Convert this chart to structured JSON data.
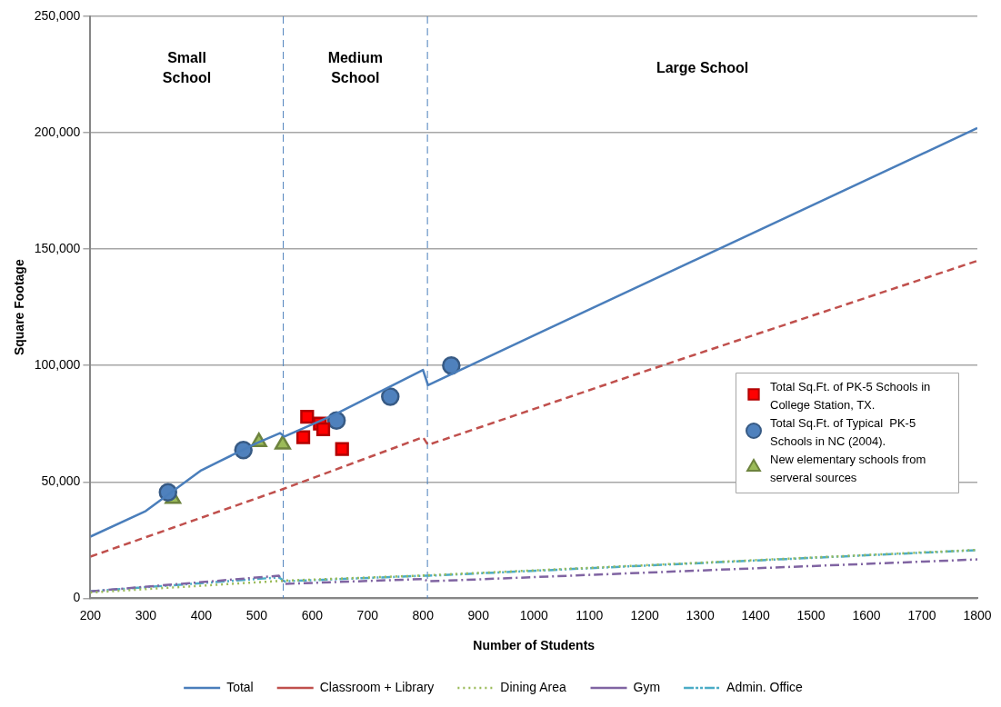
{
  "chart_data": {
    "type": "line",
    "xlabel": "Number of Students",
    "ylabel": "Square Footage",
    "xlim": [
      200,
      1800
    ],
    "xticks": [
      200,
      300,
      400,
      500,
      600,
      700,
      800,
      900,
      1000,
      1100,
      1200,
      1300,
      1400,
      1500,
      1600,
      1700,
      1800
    ],
    "ylim": [
      0,
      250000
    ],
    "yticks": [
      {
        "value": 0,
        "label": "0"
      },
      {
        "value": 50000,
        "label": "50,000"
      },
      {
        "value": 100000,
        "label": "100,000"
      },
      {
        "value": 150000,
        "label": "150,000"
      },
      {
        "value": 200000,
        "label": "200,000"
      },
      {
        "value": 250000,
        "label": "250,000"
      }
    ],
    "grid": "y",
    "legend": "bottom",
    "series": [
      {
        "name": "Total",
        "color": "#4a7ebb",
        "line_style": "solid",
        "marker": "none",
        "x": [
          200,
          300,
          400,
          500,
          542,
          550,
          640,
          800,
          809,
          1000,
          1800
        ],
        "values": [
          26500,
          37500,
          55000,
          66700,
          71000,
          69500,
          78900,
          98100,
          91600,
          112900,
          202000
        ]
      },
      {
        "name": "Classroom + Library",
        "color": "#c0504d",
        "line_style": "dashed",
        "marker": "none",
        "x": [
          200,
          547,
          800,
          809,
          1200,
          1800
        ],
        "values": [
          17900,
          46900,
          69200,
          65900,
          97500,
          145000
        ]
      },
      {
        "name": "Dining Area",
        "color": "#9bbb59",
        "line_style": "dotted",
        "marker": "none",
        "x": [
          200,
          550,
          800,
          1800
        ],
        "values": [
          2500,
          7600,
          9800,
          20800
        ]
      },
      {
        "name": "Gym",
        "color": "#8064a2",
        "line_style": "dashdot",
        "marker": "none",
        "x": [
          200,
          540,
          550,
          800,
          810,
          1800
        ],
        "values": [
          3000,
          9700,
          6200,
          8300,
          7300,
          16700
        ]
      },
      {
        "name": "Admin. Office",
        "color": "#4bacc6",
        "line_style": "dashdotdot",
        "marker": "none",
        "x": [
          200,
          540,
          550,
          800,
          810,
          1800
        ],
        "values": [
          3000,
          9000,
          7300,
          9700,
          9700,
          20700
        ]
      },
      {
        "name": "Total Sq.Ft. of PK-5 Schools in College Station, TX.",
        "type": "scatter",
        "color": "#ff0000",
        "marker": "square",
        "x": [
          591,
          614,
          620,
          584,
          654
        ],
        "values": [
          78000,
          75100,
          72600,
          69200,
          64100
        ]
      },
      {
        "name": "Total Sq.Ft. of Typical  PK-5 Schools in NC (2004).",
        "type": "scatter",
        "color": "#4f81bd",
        "marker": "circle",
        "x": [
          340,
          476,
          644,
          741,
          851
        ],
        "values": [
          45500,
          63700,
          76400,
          86600,
          100000
        ]
      },
      {
        "name": "New elementary schools from serveral sources",
        "type": "scatter",
        "color": "#9bbb59",
        "marker": "triangle",
        "x": [
          349,
          504,
          547
        ],
        "values": [
          42800,
          67200,
          66100
        ]
      }
    ],
    "ref_lines": [
      {
        "axis": "x",
        "value": 548,
        "color": "#4a7ebb",
        "line_style": "dashed"
      },
      {
        "axis": "x",
        "value": 808,
        "color": "#4a7ebb",
        "line_style": "dashed"
      }
    ],
    "annotations": [
      "Small School",
      "Medium School",
      "Large School"
    ]
  }
}
